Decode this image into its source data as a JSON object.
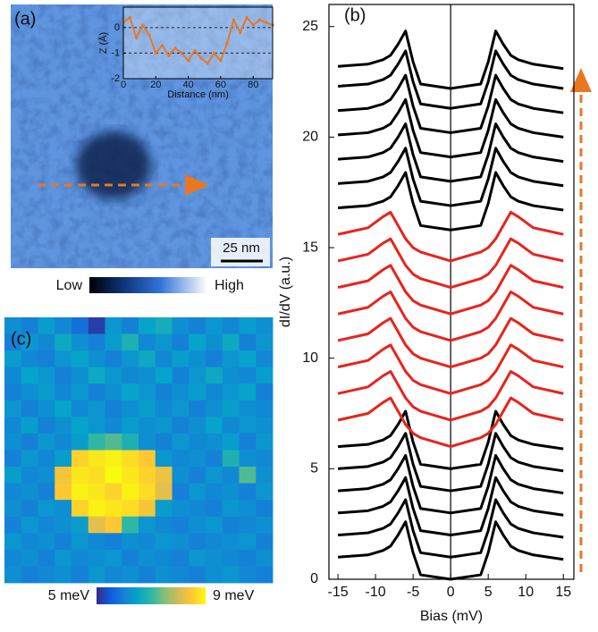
{
  "chart_data": [
    {
      "type": "image",
      "panel_label": "(a)",
      "scale_bar": "25 nm",
      "colorbar_labels": [
        "Low",
        "High"
      ]
    },
    {
      "type": "line",
      "xlabel": "Distance (nm)",
      "ylabel": "Z (Å)",
      "x": [
        0,
        4,
        8,
        12,
        16,
        20,
        24,
        28,
        32,
        36,
        40,
        44,
        48,
        52,
        56,
        60,
        64,
        68,
        72,
        76,
        80,
        84,
        88,
        92
      ],
      "series": [
        {
          "color": "#e87722",
          "values": [
            0.2,
            0.4,
            -0.4,
            0.1,
            -0.3,
            -1.0,
            -0.7,
            -1.1,
            -0.8,
            -1.0,
            -1.3,
            -0.9,
            -1.2,
            -1.4,
            -1.0,
            -1.3,
            -0.6,
            0.3,
            -0.2,
            0.4,
            0.1,
            0.3,
            0.2,
            0.1
          ]
        }
      ],
      "xlim": [
        0,
        92
      ],
      "ylim": [
        -2,
        0.8
      ],
      "xticks": [
        0,
        20,
        40,
        60,
        80
      ],
      "yticks": [
        0,
        -1,
        -2
      ],
      "hlines": [
        0,
        -1
      ]
    },
    {
      "type": "heatmap",
      "panel_label": "(c)",
      "clim": [
        5,
        9
      ],
      "colormap": [
        "#352a87",
        "#0f5cdd",
        "#1481d6",
        "#06a4ca",
        "#2eb7a4",
        "#87bf77",
        "#d1bb59",
        "#fec832",
        "#f9fb0e"
      ],
      "colorbar_ticks": [
        {
          "value": 5,
          "label": "5 meV"
        },
        {
          "value": 9,
          "label": "9 meV"
        }
      ],
      "values": [
        [
          6.2,
          6.0,
          6.4,
          6.1,
          5.8,
          5.2,
          6.3,
          6.0,
          6.5,
          6.7,
          6.2,
          6.0,
          6.3,
          6.1,
          6.4,
          6.2
        ],
        [
          6.0,
          6.3,
          6.1,
          6.6,
          6.2,
          6.0,
          6.4,
          6.8,
          6.1,
          6.3,
          6.0,
          6.5,
          6.2,
          6.6,
          6.0,
          6.3
        ],
        [
          6.4,
          6.1,
          6.0,
          6.3,
          6.5,
          6.2,
          6.0,
          6.3,
          6.6,
          6.1,
          6.4,
          6.2,
          6.0,
          6.3,
          6.5,
          6.1
        ],
        [
          6.1,
          6.5,
          6.3,
          6.0,
          6.2,
          6.6,
          6.3,
          6.1,
          6.2,
          6.5,
          6.0,
          6.3,
          6.6,
          6.2,
          6.1,
          6.4
        ],
        [
          6.0,
          6.2,
          6.4,
          6.1,
          6.3,
          6.0,
          6.2,
          6.5,
          6.3,
          6.0,
          6.2,
          6.4,
          6.1,
          6.3,
          6.5,
          6.0
        ],
        [
          6.3,
          6.0,
          6.2,
          6.5,
          6.1,
          6.3,
          6.0,
          6.2,
          6.4,
          6.1,
          6.3,
          6.0,
          6.2,
          6.4,
          6.2,
          6.1
        ],
        [
          6.1,
          6.4,
          6.0,
          6.2,
          6.5,
          6.3,
          6.1,
          6.4,
          6.2,
          6.3,
          6.0,
          6.2,
          6.5,
          6.1,
          6.3,
          6.2
        ],
        [
          6.2,
          6.0,
          6.3,
          6.1,
          6.4,
          7.0,
          7.2,
          6.8,
          6.2,
          6.0,
          6.3,
          6.1,
          6.2,
          6.4,
          6.0,
          6.3
        ],
        [
          6.0,
          6.3,
          6.1,
          6.4,
          8.6,
          8.8,
          8.9,
          8.7,
          8.5,
          6.3,
          6.1,
          6.2,
          6.0,
          6.8,
          6.2,
          6.1
        ],
        [
          6.4,
          6.1,
          6.2,
          8.4,
          8.8,
          8.7,
          9.0,
          8.8,
          8.6,
          8.3,
          6.2,
          6.0,
          6.3,
          6.1,
          7.2,
          6.2
        ],
        [
          6.1,
          6.2,
          6.0,
          8.5,
          8.9,
          8.8,
          8.6,
          8.9,
          8.7,
          8.2,
          6.0,
          6.3,
          6.1,
          6.2,
          6.0,
          6.3
        ],
        [
          6.2,
          6.0,
          6.3,
          6.2,
          8.6,
          8.9,
          8.8,
          8.7,
          8.4,
          6.4,
          6.2,
          6.1,
          6.0,
          6.3,
          6.2,
          6.0
        ],
        [
          6.0,
          6.3,
          6.1,
          6.2,
          6.4,
          8.2,
          8.5,
          7.0,
          6.3,
          6.1,
          6.0,
          6.2,
          6.3,
          6.0,
          6.1,
          6.2
        ],
        [
          6.3,
          6.1,
          6.2,
          6.0,
          6.3,
          6.1,
          6.0,
          6.2,
          6.1,
          6.3,
          6.2,
          6.0,
          6.1,
          6.2,
          6.3,
          6.0
        ],
        [
          6.1,
          6.2,
          6.0,
          6.3,
          6.1,
          6.2,
          6.3,
          6.0,
          6.2,
          6.1,
          6.0,
          6.3,
          6.2,
          6.1,
          6.0,
          6.2
        ],
        [
          6.2,
          6.0,
          6.1,
          6.2,
          6.0,
          6.3,
          6.1,
          6.2,
          6.0,
          6.2,
          6.1,
          6.0,
          6.2,
          6.3,
          6.1,
          6.0
        ]
      ]
    },
    {
      "type": "line",
      "panel_label": "(b)",
      "xlabel": "Bias (mV)",
      "ylabel": "dI/dV (a.u.)",
      "xlim": [
        -16.2,
        16.4
      ],
      "ylim": [
        0,
        26
      ],
      "xticks": [
        -15,
        -10,
        -5,
        0,
        5,
        10,
        15
      ],
      "yticks": [
        0,
        5,
        10,
        15,
        20,
        25
      ],
      "vline": 0,
      "x": [
        -15,
        -11,
        -9,
        -8,
        -7,
        -6,
        -5,
        -4,
        0,
        4,
        5,
        6,
        7,
        8,
        9,
        11,
        15
      ],
      "series": [
        {
          "color": "#000000",
          "values": [
            1.0,
            1.1,
            1.3,
            1.5,
            2.0,
            2.6,
            1.2,
            0.2,
            0.0,
            0.2,
            1.2,
            2.6,
            2.0,
            1.5,
            1.3,
            1.1,
            0.9
          ]
        },
        {
          "color": "#000000",
          "values": [
            2.0,
            2.1,
            2.3,
            2.5,
            3.0,
            3.6,
            2.2,
            1.2,
            1.0,
            1.2,
            2.2,
            3.6,
            3.0,
            2.5,
            2.3,
            2.1,
            1.9
          ]
        },
        {
          "color": "#000000",
          "values": [
            3.0,
            3.1,
            3.3,
            3.5,
            4.0,
            4.6,
            3.2,
            2.2,
            2.0,
            2.2,
            3.2,
            4.6,
            4.0,
            3.5,
            3.3,
            3.1,
            2.9
          ]
        },
        {
          "color": "#000000",
          "values": [
            4.0,
            4.1,
            4.3,
            4.5,
            5.0,
            5.6,
            4.2,
            3.2,
            3.0,
            3.2,
            4.2,
            5.6,
            5.0,
            4.5,
            4.3,
            4.1,
            3.9
          ]
        },
        {
          "color": "#000000",
          "values": [
            5.0,
            5.1,
            5.3,
            5.5,
            6.0,
            6.6,
            5.2,
            4.2,
            4.0,
            4.2,
            5.2,
            6.6,
            6.0,
            5.5,
            5.3,
            5.1,
            4.9
          ]
        },
        {
          "color": "#000000",
          "values": [
            6.0,
            6.1,
            6.3,
            6.5,
            7.0,
            7.6,
            6.2,
            5.2,
            5.0,
            5.2,
            6.2,
            7.6,
            7.0,
            6.5,
            6.3,
            6.1,
            5.9
          ]
        },
        {
          "color": "#e8231d",
          "values": [
            7.2,
            7.5,
            8.0,
            8.2,
            7.6,
            7.0,
            6.6,
            6.4,
            6.0,
            6.4,
            6.6,
            7.0,
            7.6,
            8.2,
            8.0,
            7.5,
            7.2
          ]
        },
        {
          "color": "#e8231d",
          "values": [
            8.4,
            8.7,
            9.2,
            9.4,
            8.8,
            8.2,
            7.8,
            7.6,
            7.2,
            7.6,
            7.8,
            8.2,
            8.8,
            9.4,
            9.2,
            8.7,
            8.4
          ]
        },
        {
          "color": "#e8231d",
          "values": [
            9.6,
            9.9,
            10.4,
            10.6,
            10.0,
            9.4,
            9.0,
            8.8,
            8.4,
            8.8,
            9.0,
            9.4,
            10.0,
            10.6,
            10.4,
            9.9,
            9.6
          ]
        },
        {
          "color": "#e8231d",
          "values": [
            10.8,
            11.1,
            11.6,
            11.8,
            11.2,
            10.6,
            10.2,
            10.0,
            9.6,
            10.0,
            10.2,
            10.6,
            11.2,
            11.8,
            11.6,
            11.1,
            10.8
          ]
        },
        {
          "color": "#e8231d",
          "values": [
            12.0,
            12.3,
            12.8,
            13.0,
            12.4,
            11.8,
            11.4,
            11.2,
            10.8,
            11.2,
            11.4,
            11.8,
            12.4,
            13.0,
            12.8,
            12.3,
            12.0
          ]
        },
        {
          "color": "#e8231d",
          "values": [
            13.2,
            13.5,
            14.0,
            14.2,
            13.6,
            13.0,
            12.6,
            12.4,
            12.0,
            12.4,
            12.6,
            13.0,
            13.6,
            14.2,
            14.0,
            13.5,
            13.2
          ]
        },
        {
          "color": "#e8231d",
          "values": [
            14.4,
            14.7,
            15.2,
            15.4,
            14.8,
            14.2,
            13.8,
            13.6,
            13.2,
            13.6,
            13.8,
            14.2,
            14.8,
            15.4,
            15.2,
            14.7,
            14.4
          ]
        },
        {
          "color": "#e8231d",
          "values": [
            15.6,
            15.9,
            16.4,
            16.6,
            16.0,
            15.4,
            15.0,
            14.8,
            14.4,
            14.8,
            15.0,
            15.4,
            16.0,
            16.6,
            16.4,
            15.9,
            15.6
          ]
        },
        {
          "color": "#000000",
          "values": [
            16.8,
            16.9,
            17.1,
            17.3,
            17.8,
            18.4,
            17.0,
            16.0,
            15.8,
            16.0,
            17.0,
            18.4,
            17.8,
            17.3,
            17.1,
            16.9,
            16.7
          ]
        },
        {
          "color": "#000000",
          "values": [
            17.9,
            18.0,
            18.2,
            18.4,
            18.9,
            19.5,
            18.1,
            17.1,
            16.9,
            17.1,
            18.1,
            19.5,
            18.9,
            18.4,
            18.2,
            18.0,
            17.8
          ]
        },
        {
          "color": "#000000",
          "values": [
            19.0,
            19.1,
            19.3,
            19.5,
            20.0,
            20.6,
            19.2,
            18.2,
            18.0,
            18.2,
            19.2,
            20.6,
            20.0,
            19.5,
            19.3,
            19.1,
            18.9
          ]
        },
        {
          "color": "#000000",
          "values": [
            20.1,
            20.2,
            20.4,
            20.6,
            21.1,
            21.7,
            20.3,
            19.3,
            19.1,
            19.3,
            20.3,
            21.7,
            21.1,
            20.6,
            20.4,
            20.2,
            20.0
          ]
        },
        {
          "color": "#000000",
          "values": [
            21.2,
            21.3,
            21.5,
            21.7,
            22.2,
            22.8,
            21.4,
            20.4,
            20.2,
            20.4,
            21.4,
            22.8,
            22.2,
            21.7,
            21.5,
            21.3,
            21.1
          ]
        },
        {
          "color": "#000000",
          "values": [
            22.3,
            22.4,
            22.6,
            22.8,
            23.3,
            23.9,
            22.5,
            21.5,
            21.3,
            21.5,
            22.5,
            23.9,
            23.3,
            22.8,
            22.6,
            22.4,
            22.2
          ]
        },
        {
          "color": "#000000",
          "values": [
            23.2,
            23.3,
            23.5,
            23.7,
            24.2,
            24.8,
            23.4,
            22.4,
            22.2,
            22.4,
            23.4,
            24.8,
            24.2,
            23.7,
            23.5,
            23.3,
            23.1
          ]
        }
      ]
    }
  ]
}
